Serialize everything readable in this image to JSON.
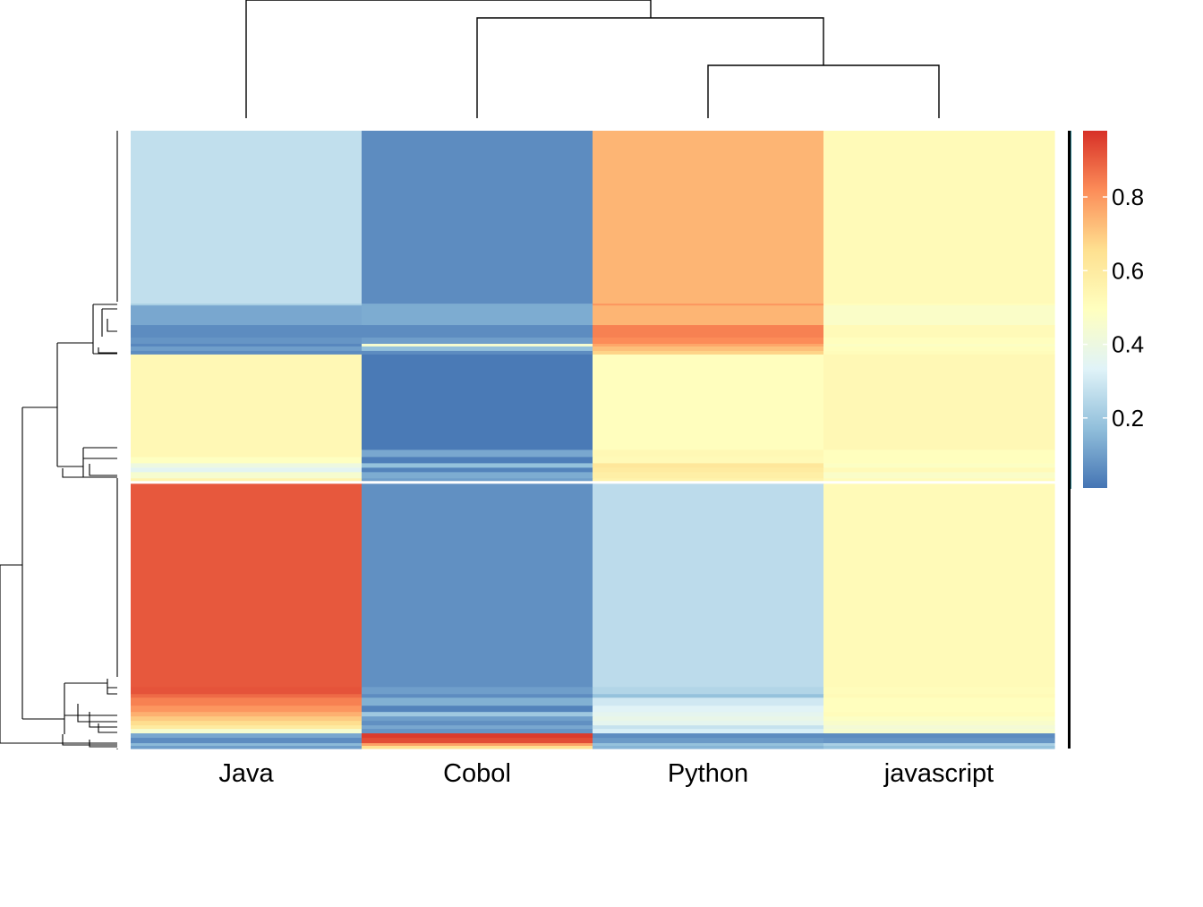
{
  "chart_data": {
    "type": "heatmap",
    "title": "",
    "xlabel": "",
    "ylabel": "",
    "columns": [
      "Java",
      "Cobol",
      "Python",
      "javascript"
    ],
    "column_dendrogram_order": [
      "Java",
      "Cobol",
      "Python",
      "javascript"
    ],
    "colorbar": {
      "ticks": [
        0.2,
        0.4,
        0.6,
        0.8
      ],
      "tick_labels": [
        "0.2",
        "0.4",
        "0.6",
        "0.8"
      ],
      "range": [
        0.01,
        0.98
      ],
      "palette": [
        "#4575b4",
        "#91bfdb",
        "#e0f3f8",
        "#ffffbf",
        "#fee090",
        "#fc8d59",
        "#d73027"
      ]
    },
    "row_blocks": [
      {
        "weight": 194,
        "values": [
          0.27,
          0.06,
          0.74,
          0.52
        ]
      },
      {
        "weight": 2,
        "values": [
          0.22,
          0.13,
          0.8,
          0.5
        ]
      },
      {
        "weight": 22,
        "values": [
          0.12,
          0.13,
          0.74,
          0.47
        ]
      },
      {
        "weight": 14,
        "values": [
          0.06,
          0.06,
          0.84,
          0.52
        ]
      },
      {
        "weight": 7,
        "values": [
          0.08,
          0.1,
          0.82,
          0.5
        ]
      },
      {
        "weight": 3,
        "values": [
          0.05,
          0.45,
          0.77,
          0.48
        ]
      },
      {
        "weight": 5,
        "values": [
          0.1,
          0.18,
          0.72,
          0.5
        ]
      },
      {
        "weight": 4,
        "values": [
          0.06,
          0.06,
          0.68,
          0.51
        ]
      },
      {
        "weight": 107,
        "values": [
          0.53,
          0.02,
          0.5,
          0.53
        ]
      },
      {
        "weight": 8,
        "values": [
          0.53,
          0.12,
          0.53,
          0.5
        ]
      },
      {
        "weight": 7,
        "values": [
          0.49,
          0.03,
          0.52,
          0.5
        ]
      },
      {
        "weight": 5,
        "values": [
          0.4,
          0.18,
          0.62,
          0.48
        ]
      },
      {
        "weight": 5,
        "values": [
          0.35,
          0.04,
          0.6,
          0.52
        ]
      },
      {
        "weight": 7,
        "values": [
          0.45,
          0.13,
          0.58,
          0.47
        ]
      },
      {
        "weight": 3,
        "values": [
          0.55,
          0.1,
          0.56,
          0.51
        ]
      },
      {
        "weight": 3,
        "values": [
          0.99,
          0.99,
          0.99,
          0.99
        ]
      },
      {
        "weight": 228,
        "values": [
          0.91,
          0.07,
          0.26,
          0.52
        ]
      },
      {
        "weight": 8,
        "values": [
          0.92,
          0.1,
          0.24,
          0.51
        ]
      },
      {
        "weight": 4,
        "values": [
          0.88,
          0.06,
          0.18,
          0.52
        ]
      },
      {
        "weight": 9,
        "values": [
          0.84,
          0.14,
          0.3,
          0.5
        ]
      },
      {
        "weight": 7,
        "values": [
          0.8,
          0.04,
          0.34,
          0.5
        ]
      },
      {
        "weight": 5,
        "values": [
          0.75,
          0.2,
          0.36,
          0.51
        ]
      },
      {
        "weight": 5,
        "values": [
          0.7,
          0.1,
          0.38,
          0.48
        ]
      },
      {
        "weight": 5,
        "values": [
          0.66,
          0.07,
          0.36,
          0.46
        ]
      },
      {
        "weight": 4,
        "values": [
          0.6,
          0.12,
          0.28,
          0.43
        ]
      },
      {
        "weight": 5,
        "values": [
          0.45,
          0.08,
          0.32,
          0.45
        ]
      },
      {
        "weight": 5,
        "values": [
          0.12,
          0.96,
          0.06,
          0.06
        ]
      },
      {
        "weight": 6,
        "values": [
          0.06,
          0.93,
          0.09,
          0.08
        ]
      },
      {
        "weight": 3,
        "values": [
          0.16,
          0.78,
          0.18,
          0.22
        ]
      },
      {
        "weight": 3,
        "values": [
          0.1,
          0.65,
          0.15,
          0.18
        ]
      }
    ]
  }
}
